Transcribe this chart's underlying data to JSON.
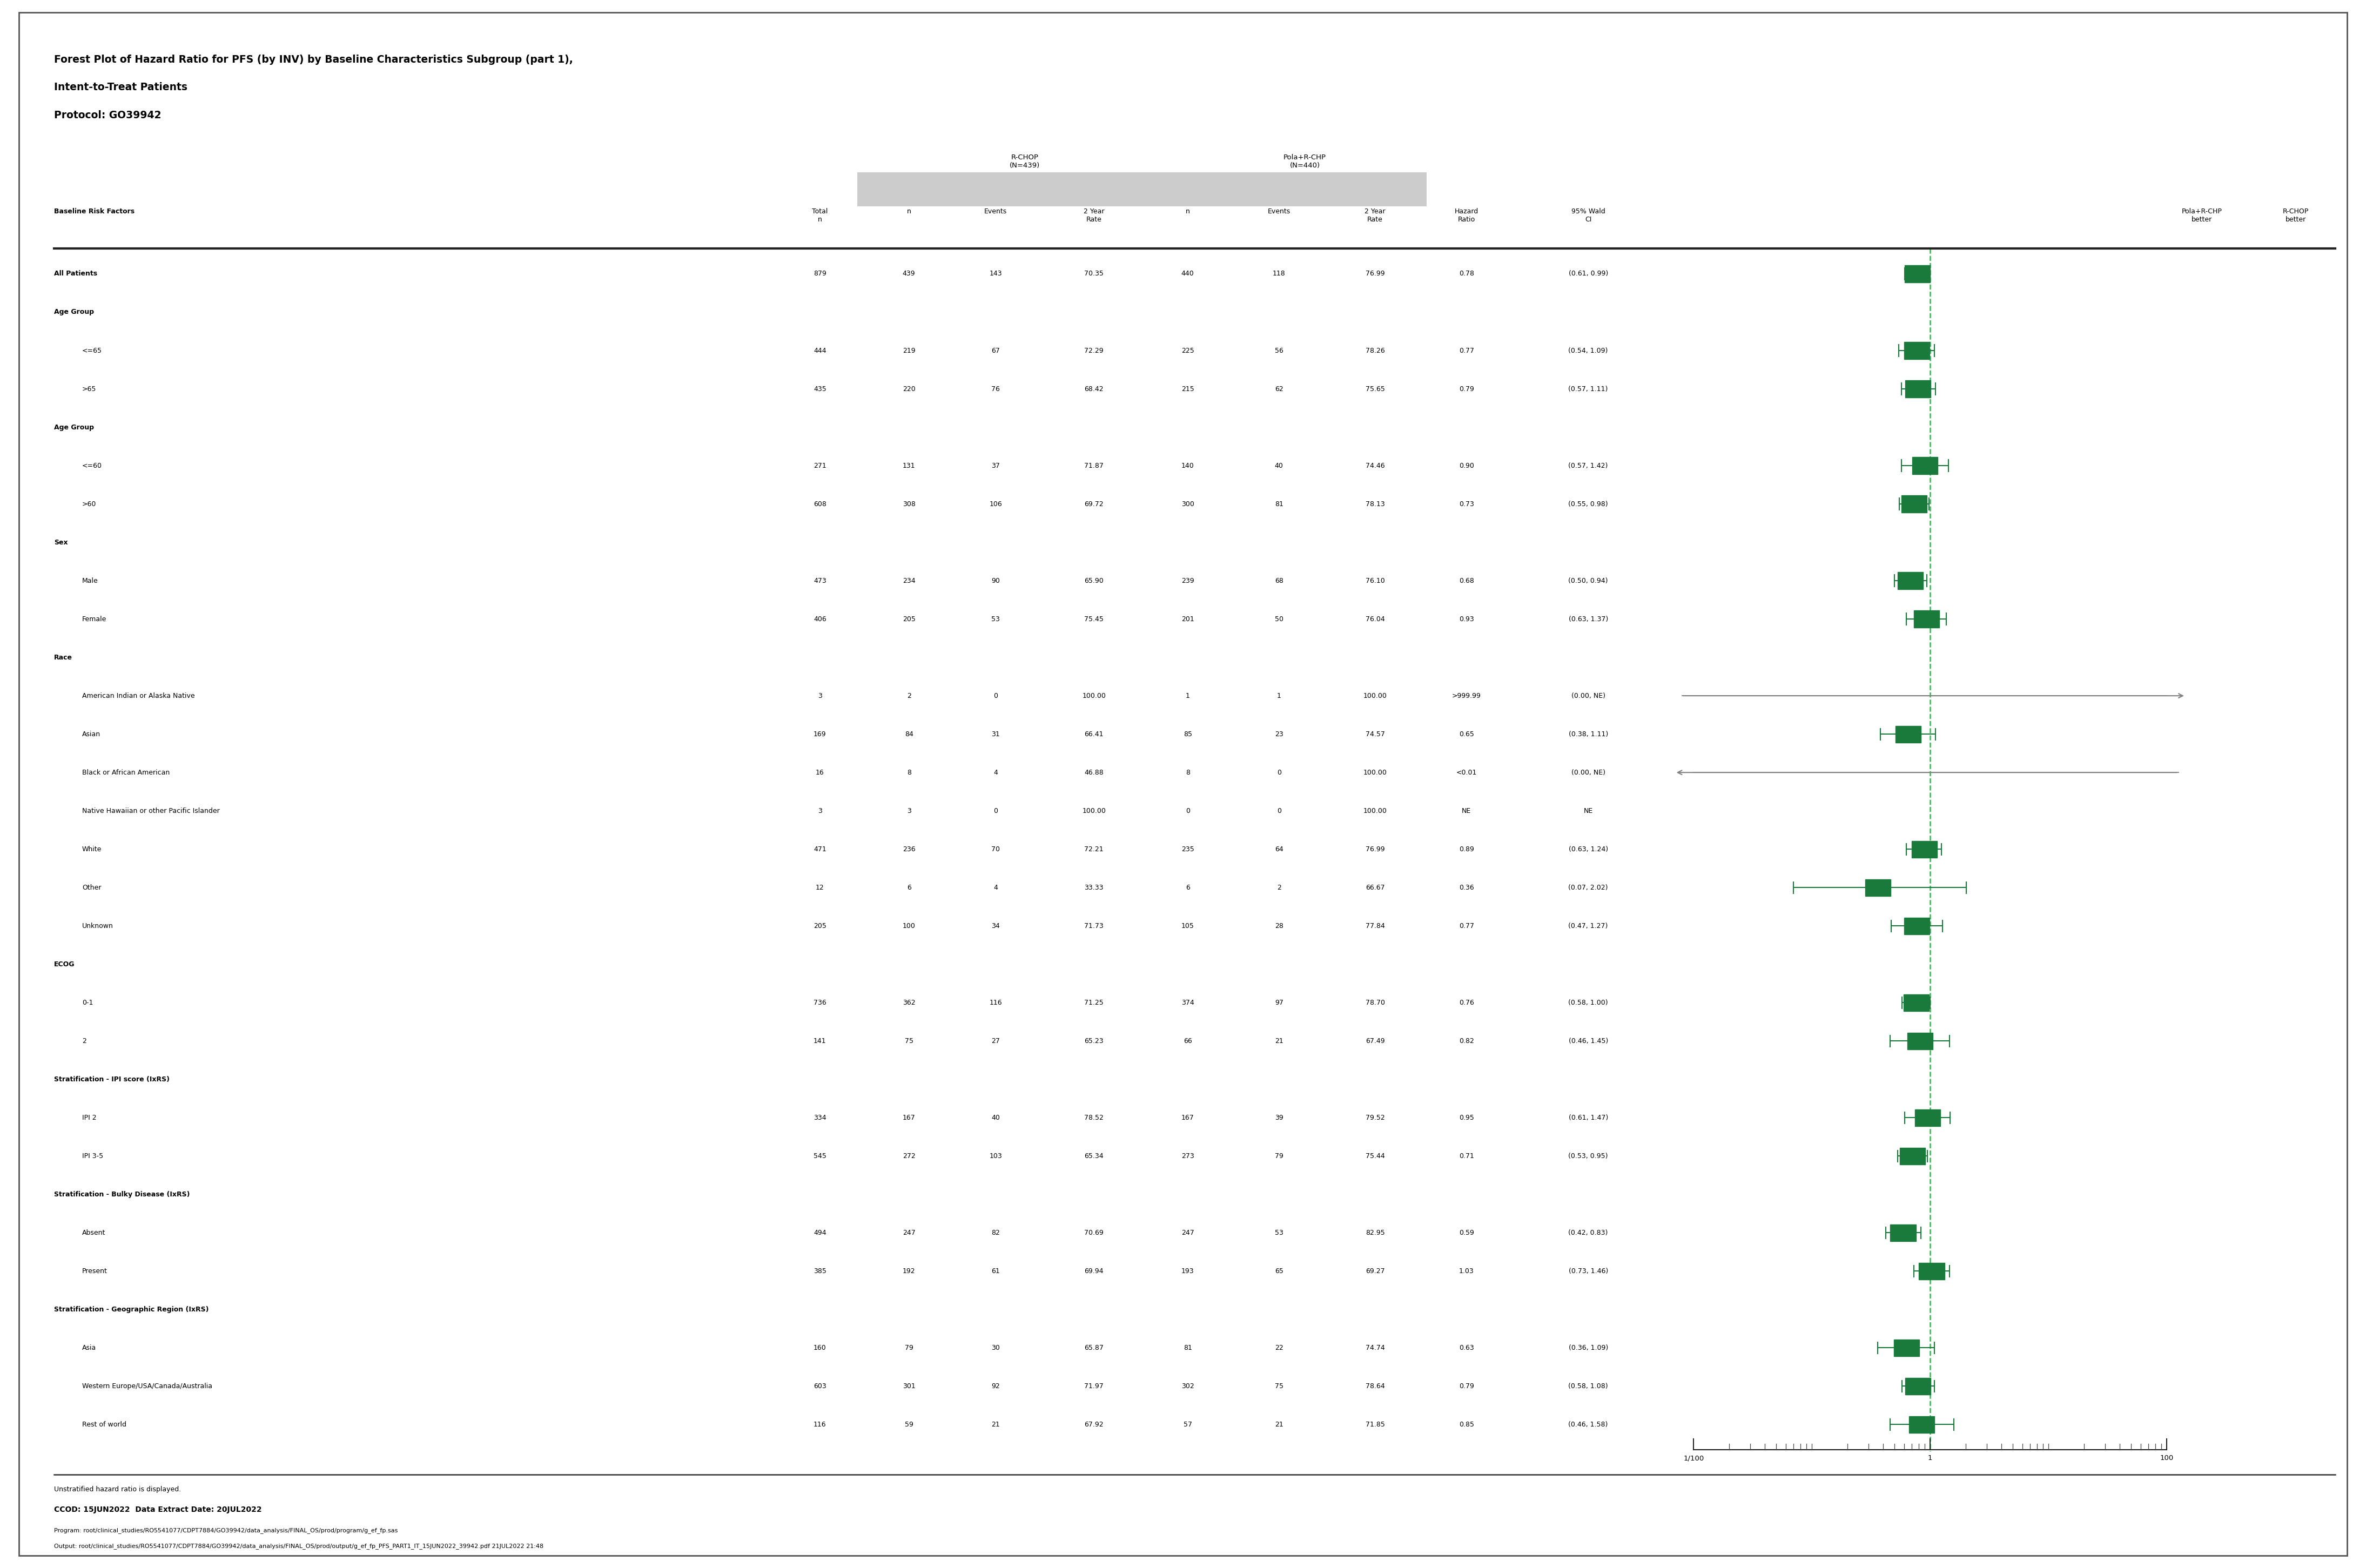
{
  "title_line1": "Forest Plot of Hazard Ratio for PFS (by INV) by Baseline Characteristics Subgroup (part 1),",
  "title_line2": "Intent-to-Treat Patients",
  "title_line3": "Protocol: GO39942",
  "footer_line1": "Unstratified hazard ratio is displayed.",
  "footer_line2": "CCOD: 15JUN2022  Data Extract Date: 20JUL2022",
  "footer_line3": "Program: root/clinical_studies/RO5541077/CDPT7884/GO39942/data_analysis/FINAL_OS/prod/program/g_ef_fp.sas",
  "footer_line4": "Output: root/clinical_studies/RO5541077/CDPT7884/GO39942/data_analysis/FINAL_OS/prod/output/g_ef_fp_PFS_PART1_IT_15JUN2022_39942.pdf 21JUL2022 21:48",
  "rows": [
    {
      "label": "All Patients",
      "indent": 0,
      "bold": true,
      "total": "879",
      "r_n": "439",
      "r_ev": "143",
      "r_rate": "70.35",
      "p_n": "440",
      "p_ev": "118",
      "p_rate": "76.99",
      "hr": 0.78,
      "ci_lo": 0.61,
      "ci_hi": 0.99,
      "hr_str": "0.78",
      "ci_str": "(0.61, 0.99)",
      "special": null
    },
    {
      "label": "Age Group",
      "indent": 0,
      "bold": true,
      "total": "",
      "r_n": "",
      "r_ev": "",
      "r_rate": "",
      "p_n": "",
      "p_ev": "",
      "p_rate": "",
      "hr": null,
      "ci_lo": null,
      "ci_hi": null,
      "hr_str": "",
      "ci_str": "",
      "special": null
    },
    {
      "label": "<=65",
      "indent": 1,
      "bold": false,
      "total": "444",
      "r_n": "219",
      "r_ev": "67",
      "r_rate": "72.29",
      "p_n": "225",
      "p_ev": "56",
      "p_rate": "78.26",
      "hr": 0.77,
      "ci_lo": 0.54,
      "ci_hi": 1.09,
      "hr_str": "0.77",
      "ci_str": "(0.54, 1.09)",
      "special": null
    },
    {
      "label": ">65",
      "indent": 1,
      "bold": false,
      "total": "435",
      "r_n": "220",
      "r_ev": "76",
      "r_rate": "68.42",
      "p_n": "215",
      "p_ev": "62",
      "p_rate": "75.65",
      "hr": 0.79,
      "ci_lo": 0.57,
      "ci_hi": 1.11,
      "hr_str": "0.79",
      "ci_str": "(0.57, 1.11)",
      "special": null
    },
    {
      "label": "Age Group",
      "indent": 0,
      "bold": true,
      "total": "",
      "r_n": "",
      "r_ev": "",
      "r_rate": "",
      "p_n": "",
      "p_ev": "",
      "p_rate": "",
      "hr": null,
      "ci_lo": null,
      "ci_hi": null,
      "hr_str": "",
      "ci_str": "",
      "special": null
    },
    {
      "label": "<=60",
      "indent": 1,
      "bold": false,
      "total": "271",
      "r_n": "131",
      "r_ev": "37",
      "r_rate": "71.87",
      "p_n": "140",
      "p_ev": "40",
      "p_rate": "74.46",
      "hr": 0.9,
      "ci_lo": 0.57,
      "ci_hi": 1.42,
      "hr_str": "0.90",
      "ci_str": "(0.57, 1.42)",
      "special": null
    },
    {
      "label": ">60",
      "indent": 1,
      "bold": false,
      "total": "608",
      "r_n": "308",
      "r_ev": "106",
      "r_rate": "69.72",
      "p_n": "300",
      "p_ev": "81",
      "p_rate": "78.13",
      "hr": 0.73,
      "ci_lo": 0.55,
      "ci_hi": 0.98,
      "hr_str": "0.73",
      "ci_str": "(0.55, 0.98)",
      "special": null
    },
    {
      "label": "Sex",
      "indent": 0,
      "bold": true,
      "total": "",
      "r_n": "",
      "r_ev": "",
      "r_rate": "",
      "p_n": "",
      "p_ev": "",
      "p_rate": "",
      "hr": null,
      "ci_lo": null,
      "ci_hi": null,
      "hr_str": "",
      "ci_str": "",
      "special": null
    },
    {
      "label": "Male",
      "indent": 1,
      "bold": false,
      "total": "473",
      "r_n": "234",
      "r_ev": "90",
      "r_rate": "65.90",
      "p_n": "239",
      "p_ev": "68",
      "p_rate": "76.10",
      "hr": 0.68,
      "ci_lo": 0.5,
      "ci_hi": 0.94,
      "hr_str": "0.68",
      "ci_str": "(0.50, 0.94)",
      "special": null
    },
    {
      "label": "Female",
      "indent": 1,
      "bold": false,
      "total": "406",
      "r_n": "205",
      "r_ev": "53",
      "r_rate": "75.45",
      "p_n": "201",
      "p_ev": "50",
      "p_rate": "76.04",
      "hr": 0.93,
      "ci_lo": 0.63,
      "ci_hi": 1.37,
      "hr_str": "0.93",
      "ci_str": "(0.63, 1.37)",
      "special": null
    },
    {
      "label": "Race",
      "indent": 0,
      "bold": true,
      "total": "",
      "r_n": "",
      "r_ev": "",
      "r_rate": "",
      "p_n": "",
      "p_ev": "",
      "p_rate": "",
      "hr": null,
      "ci_lo": null,
      "ci_hi": null,
      "hr_str": "",
      "ci_str": "",
      "special": null
    },
    {
      "label": "American Indian or Alaska Native",
      "indent": 1,
      "bold": false,
      "total": "3",
      "r_n": "2",
      "r_ev": "0",
      "r_rate": "100.00",
      "p_n": "1",
      "p_ev": "1",
      "p_rate": "100.00",
      "hr": 999.99,
      "ci_lo": null,
      "ci_hi": null,
      "hr_str": ">999.99",
      "ci_str": "(0.00, NE)",
      "special": "arrow_right"
    },
    {
      "label": "Asian",
      "indent": 1,
      "bold": false,
      "total": "169",
      "r_n": "84",
      "r_ev": "31",
      "r_rate": "66.41",
      "p_n": "85",
      "p_ev": "23",
      "p_rate": "74.57",
      "hr": 0.65,
      "ci_lo": 0.38,
      "ci_hi": 1.11,
      "hr_str": "0.65",
      "ci_str": "(0.38, 1.11)",
      "special": null
    },
    {
      "label": "Black or African American",
      "indent": 1,
      "bold": false,
      "total": "16",
      "r_n": "8",
      "r_ev": "4",
      "r_rate": "46.88",
      "p_n": "8",
      "p_ev": "0",
      "p_rate": "100.00",
      "hr": 0.001,
      "ci_lo": null,
      "ci_hi": null,
      "hr_str": "<0.01",
      "ci_str": "(0.00, NE)",
      "special": "arrow_left"
    },
    {
      "label": "Native Hawaiian or other Pacific Islander",
      "indent": 1,
      "bold": false,
      "total": "3",
      "r_n": "3",
      "r_ev": "0",
      "r_rate": "100.00",
      "p_n": "0",
      "p_ev": "0",
      "p_rate": "100.00",
      "hr": null,
      "ci_lo": null,
      "ci_hi": null,
      "hr_str": "NE",
      "ci_str": "NE",
      "special": null
    },
    {
      "label": "White",
      "indent": 1,
      "bold": false,
      "total": "471",
      "r_n": "236",
      "r_ev": "70",
      "r_rate": "72.21",
      "p_n": "235",
      "p_ev": "64",
      "p_rate": "76.99",
      "hr": 0.89,
      "ci_lo": 0.63,
      "ci_hi": 1.24,
      "hr_str": "0.89",
      "ci_str": "(0.63, 1.24)",
      "special": null
    },
    {
      "label": "Other",
      "indent": 1,
      "bold": false,
      "total": "12",
      "r_n": "6",
      "r_ev": "4",
      "r_rate": "33.33",
      "p_n": "6",
      "p_ev": "2",
      "p_rate": "66.67",
      "hr": 0.36,
      "ci_lo": 0.07,
      "ci_hi": 2.02,
      "hr_str": "0.36",
      "ci_str": "(0.07, 2.02)",
      "special": null
    },
    {
      "label": "Unknown",
      "indent": 1,
      "bold": false,
      "total": "205",
      "r_n": "100",
      "r_ev": "34",
      "r_rate": "71.73",
      "p_n": "105",
      "p_ev": "28",
      "p_rate": "77.84",
      "hr": 0.77,
      "ci_lo": 0.47,
      "ci_hi": 1.27,
      "hr_str": "0.77",
      "ci_str": "(0.47, 1.27)",
      "special": null
    },
    {
      "label": "ECOG",
      "indent": 0,
      "bold": true,
      "total": "",
      "r_n": "",
      "r_ev": "",
      "r_rate": "",
      "p_n": "",
      "p_ev": "",
      "p_rate": "",
      "hr": null,
      "ci_lo": null,
      "ci_hi": null,
      "hr_str": "",
      "ci_str": "",
      "special": null
    },
    {
      "label": "0-1",
      "indent": 1,
      "bold": false,
      "total": "736",
      "r_n": "362",
      "r_ev": "116",
      "r_rate": "71.25",
      "p_n": "374",
      "p_ev": "97",
      "p_rate": "78.70",
      "hr": 0.76,
      "ci_lo": 0.58,
      "ci_hi": 1.0,
      "hr_str": "0.76",
      "ci_str": "(0.58, 1.00)",
      "special": null
    },
    {
      "label": "2",
      "indent": 1,
      "bold": false,
      "total": "141",
      "r_n": "75",
      "r_ev": "27",
      "r_rate": "65.23",
      "p_n": "66",
      "p_ev": "21",
      "p_rate": "67.49",
      "hr": 0.82,
      "ci_lo": 0.46,
      "ci_hi": 1.45,
      "hr_str": "0.82",
      "ci_str": "(0.46, 1.45)",
      "special": null
    },
    {
      "label": "Stratification - IPI score (IxRS)",
      "indent": 0,
      "bold": true,
      "total": "",
      "r_n": "",
      "r_ev": "",
      "r_rate": "",
      "p_n": "",
      "p_ev": "",
      "p_rate": "",
      "hr": null,
      "ci_lo": null,
      "ci_hi": null,
      "hr_str": "",
      "ci_str": "",
      "special": null
    },
    {
      "label": "IPI 2",
      "indent": 1,
      "bold": false,
      "total": "334",
      "r_n": "167",
      "r_ev": "40",
      "r_rate": "78.52",
      "p_n": "167",
      "p_ev": "39",
      "p_rate": "79.52",
      "hr": 0.95,
      "ci_lo": 0.61,
      "ci_hi": 1.47,
      "hr_str": "0.95",
      "ci_str": "(0.61, 1.47)",
      "special": null
    },
    {
      "label": "IPI 3-5",
      "indent": 1,
      "bold": false,
      "total": "545",
      "r_n": "272",
      "r_ev": "103",
      "r_rate": "65.34",
      "p_n": "273",
      "p_ev": "79",
      "p_rate": "75.44",
      "hr": 0.71,
      "ci_lo": 0.53,
      "ci_hi": 0.95,
      "hr_str": "0.71",
      "ci_str": "(0.53, 0.95)",
      "special": null
    },
    {
      "label": "Stratification - Bulky Disease (IxRS)",
      "indent": 0,
      "bold": true,
      "total": "",
      "r_n": "",
      "r_ev": "",
      "r_rate": "",
      "p_n": "",
      "p_ev": "",
      "p_rate": "",
      "hr": null,
      "ci_lo": null,
      "ci_hi": null,
      "hr_str": "",
      "ci_str": "",
      "special": null
    },
    {
      "label": "Absent",
      "indent": 1,
      "bold": false,
      "total": "494",
      "r_n": "247",
      "r_ev": "82",
      "r_rate": "70.69",
      "p_n": "247",
      "p_ev": "53",
      "p_rate": "82.95",
      "hr": 0.59,
      "ci_lo": 0.42,
      "ci_hi": 0.83,
      "hr_str": "0.59",
      "ci_str": "(0.42, 0.83)",
      "special": null
    },
    {
      "label": "Present",
      "indent": 1,
      "bold": false,
      "total": "385",
      "r_n": "192",
      "r_ev": "61",
      "r_rate": "69.94",
      "p_n": "193",
      "p_ev": "65",
      "p_rate": "69.27",
      "hr": 1.03,
      "ci_lo": 0.73,
      "ci_hi": 1.46,
      "hr_str": "1.03",
      "ci_str": "(0.73, 1.46)",
      "special": null
    },
    {
      "label": "Stratification - Geographic Region (IxRS)",
      "indent": 0,
      "bold": true,
      "total": "",
      "r_n": "",
      "r_ev": "",
      "r_rate": "",
      "p_n": "",
      "p_ev": "",
      "p_rate": "",
      "hr": null,
      "ci_lo": null,
      "ci_hi": null,
      "hr_str": "",
      "ci_str": "",
      "special": null
    },
    {
      "label": "Asia",
      "indent": 1,
      "bold": false,
      "total": "160",
      "r_n": "79",
      "r_ev": "30",
      "r_rate": "65.87",
      "p_n": "81",
      "p_ev": "22",
      "p_rate": "74.74",
      "hr": 0.63,
      "ci_lo": 0.36,
      "ci_hi": 1.09,
      "hr_str": "0.63",
      "ci_str": "(0.36, 1.09)",
      "special": null
    },
    {
      "label": "Western Europe/USA/Canada/Australia",
      "indent": 1,
      "bold": false,
      "total": "603",
      "r_n": "301",
      "r_ev": "92",
      "r_rate": "71.97",
      "p_n": "302",
      "p_ev": "75",
      "p_rate": "78.64",
      "hr": 0.79,
      "ci_lo": 0.58,
      "ci_hi": 1.08,
      "hr_str": "0.79",
      "ci_str": "(0.58, 1.08)",
      "special": null
    },
    {
      "label": "Rest of world",
      "indent": 1,
      "bold": false,
      "total": "116",
      "r_n": "59",
      "r_ev": "21",
      "r_rate": "67.92",
      "p_n": "57",
      "p_ev": "21",
      "p_rate": "71.85",
      "hr": 0.85,
      "ci_lo": 0.46,
      "ci_hi": 1.58,
      "hr_str": "0.85",
      "ci_str": "(0.46, 1.58)",
      "special": null
    }
  ],
  "plot_color": "#1a7a3c",
  "dashed_line_color": "#3cb554",
  "arrow_color": "#808080",
  "background_color": "#ffffff"
}
